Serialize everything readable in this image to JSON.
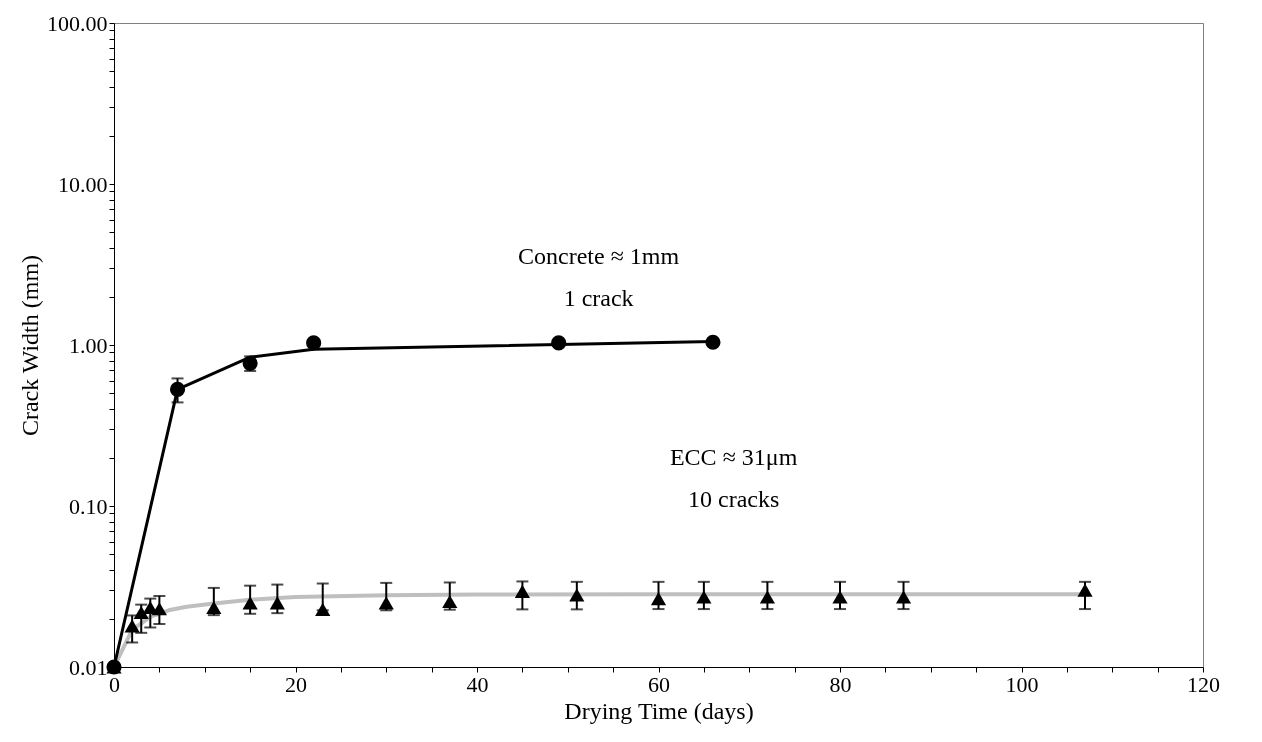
{
  "chart_data": {
    "type": "scatter",
    "xlabel": "Drying Time (days)",
    "ylabel": "Crack Width (mm)",
    "log": "y",
    "xlim": [
      0,
      120
    ],
    "ylim": [
      0.01,
      100
    ],
    "xticks": [
      0,
      {
        "value": 5,
        "label": null
      },
      {
        "value": 10,
        "label": null
      },
      {
        "value": 15,
        "label": null
      },
      20,
      {
        "value": 25,
        "label": null
      },
      {
        "value": 30,
        "label": null
      },
      {
        "value": 35,
        "label": null
      },
      40,
      {
        "value": 45,
        "label": null
      },
      {
        "value": 50,
        "label": null
      },
      {
        "value": 55,
        "label": null
      },
      60,
      {
        "value": 65,
        "label": null
      },
      {
        "value": 70,
        "label": null
      },
      {
        "value": 75,
        "label": null
      },
      80,
      {
        "value": 85,
        "label": null
      },
      {
        "value": 90,
        "label": null
      },
      {
        "value": 95,
        "label": null
      },
      100,
      {
        "value": 105,
        "label": null
      },
      {
        "value": 110,
        "label": null
      },
      {
        "value": 115,
        "label": null
      },
      120
    ],
    "yticks": [
      {
        "value": 0.01,
        "label": "0.01"
      },
      {
        "value": 0.02,
        "label": null
      },
      {
        "value": 0.03,
        "label": null
      },
      {
        "value": 0.04,
        "label": null
      },
      {
        "value": 0.05,
        "label": null
      },
      {
        "value": 0.06,
        "label": null
      },
      {
        "value": 0.07,
        "label": null
      },
      {
        "value": 0.08,
        "label": null
      },
      {
        "value": 0.09,
        "label": null
      },
      {
        "value": 0.1,
        "label": "0.10"
      },
      {
        "value": 0.2,
        "label": null
      },
      {
        "value": 0.3,
        "label": null
      },
      {
        "value": 0.4,
        "label": null
      },
      {
        "value": 0.5,
        "label": null
      },
      {
        "value": 0.6,
        "label": null
      },
      {
        "value": 0.7,
        "label": null
      },
      {
        "value": 0.8,
        "label": null
      },
      {
        "value": 0.9,
        "label": null
      },
      {
        "value": 1,
        "label": "1.00"
      },
      {
        "value": 2,
        "label": null
      },
      {
        "value": 3,
        "label": null
      },
      {
        "value": 4,
        "label": null
      },
      {
        "value": 5,
        "label": null
      },
      {
        "value": 6,
        "label": null
      },
      {
        "value": 7,
        "label": null
      },
      {
        "value": 8,
        "label": null
      },
      {
        "value": 9,
        "label": null
      },
      {
        "value": 10,
        "label": "10.00"
      },
      {
        "value": 20,
        "label": null
      },
      {
        "value": 30,
        "label": null
      },
      {
        "value": 40,
        "label": null
      },
      {
        "value": 50,
        "label": null
      },
      {
        "value": 60,
        "label": null
      },
      {
        "value": 70,
        "label": null
      },
      {
        "value": 80,
        "label": null
      },
      {
        "value": 90,
        "label": null
      },
      {
        "value": 100,
        "label": "100.00"
      }
    ],
    "series": [
      {
        "type": "line",
        "color": "#bfbfbf",
        "marker": "none",
        "x": [
          0,
          2,
          4,
          6,
          8,
          11,
          15,
          20,
          30,
          40,
          60,
          80,
          107
        ],
        "values": [
          0.01,
          0.017,
          0.0205,
          0.0225,
          0.0237,
          0.0248,
          0.0262,
          0.0272,
          0.0279,
          0.0282,
          0.0283,
          0.0283,
          0.0283
        ]
      },
      {
        "type": "line",
        "color": "#000000",
        "marker": "none",
        "x": [
          0,
          7,
          15,
          22,
          66
        ],
        "values": [
          0.01,
          0.53,
          0.84,
          0.94,
          1.05
        ]
      },
      {
        "color": "#000000",
        "marker": "triangle",
        "x": [
          0,
          2,
          3,
          4,
          5,
          11,
          15,
          18,
          23,
          30,
          37,
          45,
          51,
          60,
          65,
          72,
          80,
          87,
          107
        ],
        "values": [
          0.01,
          0.018,
          0.0218,
          0.0234,
          0.023,
          0.0234,
          0.025,
          0.025,
          0.0228,
          0.025,
          0.0255,
          0.0295,
          0.028,
          0.0266,
          0.0272,
          0.0272,
          0.0272,
          0.0272,
          0.03
        ],
        "errors": [
          null,
          [
            0.0142,
            0.0209
          ],
          [
            0.0163,
            0.0244
          ],
          [
            0.0176,
            0.0266
          ],
          [
            0.0185,
            0.0276
          ],
          [
            0.021,
            0.031
          ],
          [
            0.0214,
            0.032
          ],
          [
            0.0216,
            0.0325
          ],
          [
            0.0225,
            0.033
          ],
          [
            0.0225,
            0.0333
          ],
          [
            0.0227,
            0.0335
          ],
          [
            0.0228,
            0.034
          ],
          [
            0.0228,
            0.0338
          ],
          [
            0.0229,
            0.0338
          ],
          [
            0.0229,
            0.0338
          ],
          [
            0.0229,
            0.0338
          ],
          [
            0.0229,
            0.0338
          ],
          [
            0.0229,
            0.0338
          ],
          [
            0.0229,
            0.0338
          ]
        ]
      },
      {
        "color": "#000000",
        "marker": "circle",
        "x": [
          0,
          7,
          15,
          22,
          49,
          66
        ],
        "values": [
          0.01,
          0.53,
          0.77,
          1.03,
          1.03,
          1.04
        ],
        "errors": [
          null,
          0.09,
          0.08,
          null,
          null,
          null
        ]
      }
    ],
    "annotations": [
      "Concrete ≈ 1mm",
      "1 crack",
      "ECC ≈ 31μm",
      "10 cracks"
    ]
  }
}
